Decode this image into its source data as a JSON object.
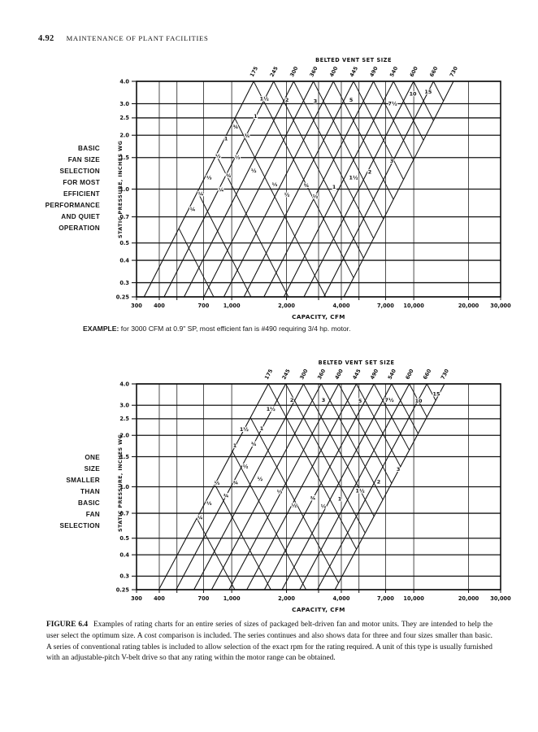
{
  "page": {
    "folio": "4.92",
    "running_head": "MAINTENANCE OF PLANT FACILITIES",
    "example_label": "EXAMPLE:",
    "example_text": " for 3000 CFM at 0.9\" SP, most efficient fan is #490 requiring 3/4 hp. motor.",
    "caption_label": "FIGURE 6.4",
    "caption_text": "Examples of rating charts for an entire series of sizes of packaged belt-driven fan and motor units. They are intended to help the user select the optimum size. A cost comparison is included. The series continues and also shows data for three and four sizes smaller than basic. A series of conventional rating tables is included to allow selection of the exact rpm for the rating required. A unit of this type is usually furnished with an adjustable-pitch V-belt drive so that any rating within the motor range can be obtained."
  },
  "chart_data": [
    {
      "type": "line",
      "title": "BELTED VENT SET SIZE",
      "xlabel": "CAPACITY, CFM",
      "ylabel": "STATIC PRESSURE, INCHES WG",
      "side_label_lines": [
        "BASIC",
        "FAN SIZE",
        "SELECTION",
        "FOR MOST",
        "EFFICIENT",
        "PERFORMANCE",
        "AND QUIET",
        "OPERATION"
      ],
      "xlim": [
        300,
        30000
      ],
      "ylim": [
        0.25,
        4.0
      ],
      "x_scale": "log",
      "y_scale": "log",
      "x_grid": [
        300,
        400,
        500,
        700,
        1000,
        2000,
        3000,
        4000,
        5000,
        7000,
        10000,
        20000,
        30000
      ],
      "x_ticks": [
        300,
        400,
        700,
        1000,
        2000,
        4000,
        7000,
        10000,
        20000,
        30000
      ],
      "x_tick_labels": [
        "300",
        "400",
        "700",
        "1,000",
        "2,000",
        "4,000",
        "7,000",
        "10,000",
        "20,000",
        "30,000"
      ],
      "y_ticks": [
        0.25,
        0.3,
        0.4,
        0.5,
        0.7,
        1.0,
        1.5,
        2.0,
        2.5,
        3.0,
        4.0
      ],
      "y_tick_labels": [
        "0.25",
        "0.3",
        "0.4",
        "0.5",
        "0.7",
        "1.0",
        "1.5",
        "2.0",
        "2.5",
        "3.0",
        "4.0"
      ],
      "fan_sizes": [
        "175",
        "245",
        "300",
        "360",
        "400",
        "445",
        "490",
        "540",
        "600",
        "660",
        "730"
      ],
      "fan_top_cfm": [
        1320,
        1700,
        2190,
        2810,
        3620,
        4670,
        6010,
        7740,
        9970,
        12830,
        16520
      ],
      "hp_extra_anchor_cfm": [
        820,
        512,
        319,
        199
      ],
      "hp_labels": [
        {
          "hp": "1½",
          "cfm": 1510,
          "sp": 3.2
        },
        {
          "hp": "2",
          "cfm": 2010,
          "sp": 3.15
        },
        {
          "hp": "3",
          "cfm": 2880,
          "sp": 3.1
        },
        {
          "hp": "5",
          "cfm": 4530,
          "sp": 3.15
        },
        {
          "hp": "7½",
          "cfm": 7650,
          "sp": 3.0
        },
        {
          "hp": "10",
          "cfm": 9890,
          "sp": 3.4
        },
        {
          "hp": "15",
          "cfm": 12000,
          "sp": 3.5
        },
        {
          "hp": "1",
          "cfm": 1350,
          "sp": 2.55
        },
        {
          "hp": "¾",
          "cfm": 1050,
          "sp": 2.23
        },
        {
          "hp": "1",
          "cfm": 930,
          "sp": 1.92
        },
        {
          "hp": "¾",
          "cfm": 1215,
          "sp": 1.99
        },
        {
          "hp": "½",
          "cfm": 840,
          "sp": 1.53
        },
        {
          "hp": "⅓",
          "cfm": 1075,
          "sp": 1.51
        },
        {
          "hp": "⅓",
          "cfm": 750,
          "sp": 1.16
        },
        {
          "hp": "¾",
          "cfm": 960,
          "sp": 1.19
        },
        {
          "hp": "½",
          "cfm": 1320,
          "sp": 1.27
        },
        {
          "hp": "¼",
          "cfm": 676,
          "sp": 0.94
        },
        {
          "hp": "¼",
          "cfm": 874,
          "sp": 0.99
        },
        {
          "hp": "⅓",
          "cfm": 1720,
          "sp": 1.06
        },
        {
          "hp": "½",
          "cfm": 2010,
          "sp": 0.93
        },
        {
          "hp": "¾",
          "cfm": 2570,
          "sp": 1.05
        },
        {
          "hp": "½",
          "cfm": 2880,
          "sp": 0.91
        },
        {
          "hp": "1",
          "cfm": 3650,
          "sp": 1.03
        },
        {
          "hp": "1½",
          "cfm": 4670,
          "sp": 1.16
        },
        {
          "hp": "2",
          "cfm": 5730,
          "sp": 1.25
        },
        {
          "hp": "3",
          "cfm": 7570,
          "sp": 1.44
        },
        {
          "hp": "¼",
          "cfm": 610,
          "sp": 0.77
        }
      ]
    },
    {
      "type": "line",
      "title": "BELTED VENT SET SIZE",
      "xlabel": "CAPACITY, CFM",
      "ylabel": "STATIC PRESSURE, INCHES WG",
      "side_label_lines": [
        "ONE",
        "SIZE",
        "SMALLER",
        "THAN",
        "BASIC",
        "FAN",
        "SELECTION"
      ],
      "xlim": [
        300,
        30000
      ],
      "ylim": [
        0.25,
        4.0
      ],
      "x_scale": "log",
      "y_scale": "log",
      "x_grid": [
        300,
        400,
        500,
        700,
        1000,
        2000,
        3000,
        4000,
        5000,
        7000,
        10000,
        20000,
        30000
      ],
      "x_ticks": [
        300,
        400,
        700,
        1000,
        2000,
        4000,
        7000,
        10000,
        20000,
        30000
      ],
      "x_tick_labels": [
        "300",
        "400",
        "700",
        "1,000",
        "2,000",
        "4,000",
        "7,000",
        "10,000",
        "20,000",
        "30,000"
      ],
      "y_ticks": [
        0.25,
        0.3,
        0.4,
        0.5,
        0.7,
        1.0,
        1.5,
        2.0,
        2.5,
        3.0,
        4.0
      ],
      "y_tick_labels": [
        "0.25",
        "0.3",
        "0.4",
        "0.5",
        "0.7",
        "1.0",
        "1.5",
        "2.0",
        "2.5",
        "3.0",
        "4.0"
      ],
      "fan_sizes": [
        "175",
        "245",
        "300",
        "360",
        "400",
        "445",
        "490",
        "540",
        "600",
        "660",
        "730"
      ],
      "fan_top_cfm": [
        1590,
        1980,
        2480,
        3100,
        3870,
        4840,
        6050,
        7560,
        9450,
        11810,
        14760
      ],
      "hp_extra_anchor_cfm": [
        1010,
        640,
        410,
        260
      ],
      "hp_labels": [
        {
          "hp": "1½",
          "cfm": 1640,
          "sp": 2.85
        },
        {
          "hp": "2",
          "cfm": 2140,
          "sp": 3.22
        },
        {
          "hp": "3",
          "cfm": 3190,
          "sp": 3.22
        },
        {
          "hp": "5",
          "cfm": 5070,
          "sp": 3.18
        },
        {
          "hp": "7½",
          "cfm": 7340,
          "sp": 3.22
        },
        {
          "hp": "10",
          "cfm": 10630,
          "sp": 3.18
        },
        {
          "hp": "15",
          "cfm": 13320,
          "sp": 3.5
        },
        {
          "hp": "1½",
          "cfm": 1170,
          "sp": 2.17
        },
        {
          "hp": "1",
          "cfm": 1460,
          "sp": 2.19
        },
        {
          "hp": "1",
          "cfm": 1040,
          "sp": 1.74
        },
        {
          "hp": "¾",
          "cfm": 1320,
          "sp": 1.78
        },
        {
          "hp": "½",
          "cfm": 1190,
          "sp": 1.32
        },
        {
          "hp": "⅓",
          "cfm": 830,
          "sp": 1.05
        },
        {
          "hp": "¾",
          "cfm": 1050,
          "sp": 1.06
        },
        {
          "hp": "½",
          "cfm": 1430,
          "sp": 1.11
        },
        {
          "hp": "⅓",
          "cfm": 750,
          "sp": 0.8
        },
        {
          "hp": "¾",
          "cfm": 930,
          "sp": 0.89
        },
        {
          "hp": "¼",
          "cfm": 670,
          "sp": 0.66
        },
        {
          "hp": "⅓",
          "cfm": 1830,
          "sp": 0.94
        },
        {
          "hp": "½",
          "cfm": 2200,
          "sp": 0.78
        },
        {
          "hp": "¾",
          "cfm": 2790,
          "sp": 0.86
        },
        {
          "hp": "½",
          "cfm": 3190,
          "sp": 0.77
        },
        {
          "hp": "1",
          "cfm": 3920,
          "sp": 0.85
        },
        {
          "hp": "1½",
          "cfm": 5070,
          "sp": 0.95
        },
        {
          "hp": "2",
          "cfm": 6420,
          "sp": 1.07
        },
        {
          "hp": "3",
          "cfm": 8220,
          "sp": 1.27
        }
      ]
    }
  ]
}
